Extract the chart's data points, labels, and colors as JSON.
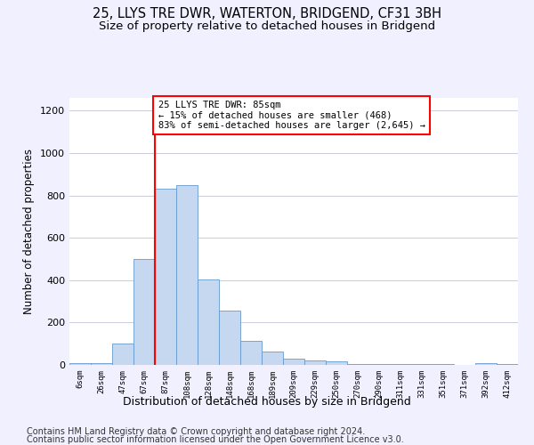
{
  "title": "25, LLYS TRE DWR, WATERTON, BRIDGEND, CF31 3BH",
  "subtitle": "Size of property relative to detached houses in Bridgend",
  "xlabel": "Distribution of detached houses by size in Bridgend",
  "ylabel": "Number of detached properties",
  "footer1": "Contains HM Land Registry data © Crown copyright and database right 2024.",
  "footer2": "Contains public sector information licensed under the Open Government Licence v3.0.",
  "bin_labels": [
    "6sqm",
    "26sqm",
    "47sqm",
    "67sqm",
    "87sqm",
    "108sqm",
    "128sqm",
    "148sqm",
    "168sqm",
    "189sqm",
    "209sqm",
    "229sqm",
    "250sqm",
    "270sqm",
    "290sqm",
    "311sqm",
    "331sqm",
    "351sqm",
    "371sqm",
    "392sqm",
    "412sqm"
  ],
  "bar_values": [
    10,
    10,
    100,
    500,
    830,
    850,
    405,
    255,
    115,
    65,
    30,
    20,
    15,
    5,
    5,
    5,
    5,
    5,
    0,
    10,
    5
  ],
  "bar_color": "#c5d8f0",
  "bar_edge_color": "#6699cc",
  "vline_bin_index": 4,
  "annotation_text": "25 LLYS TRE DWR: 85sqm\n← 15% of detached houses are smaller (468)\n83% of semi-detached houses are larger (2,645) →",
  "annotation_box_color": "white",
  "annotation_box_edge_color": "red",
  "vline_color": "red",
  "ylim": [
    0,
    1260
  ],
  "yticks": [
    0,
    200,
    400,
    600,
    800,
    1000,
    1200
  ],
  "background_color": "#f0f0ff",
  "plot_background": "white",
  "title_fontsize": 10.5,
  "subtitle_fontsize": 9.5,
  "xlabel_fontsize": 9,
  "ylabel_fontsize": 8.5,
  "footer_fontsize": 7
}
